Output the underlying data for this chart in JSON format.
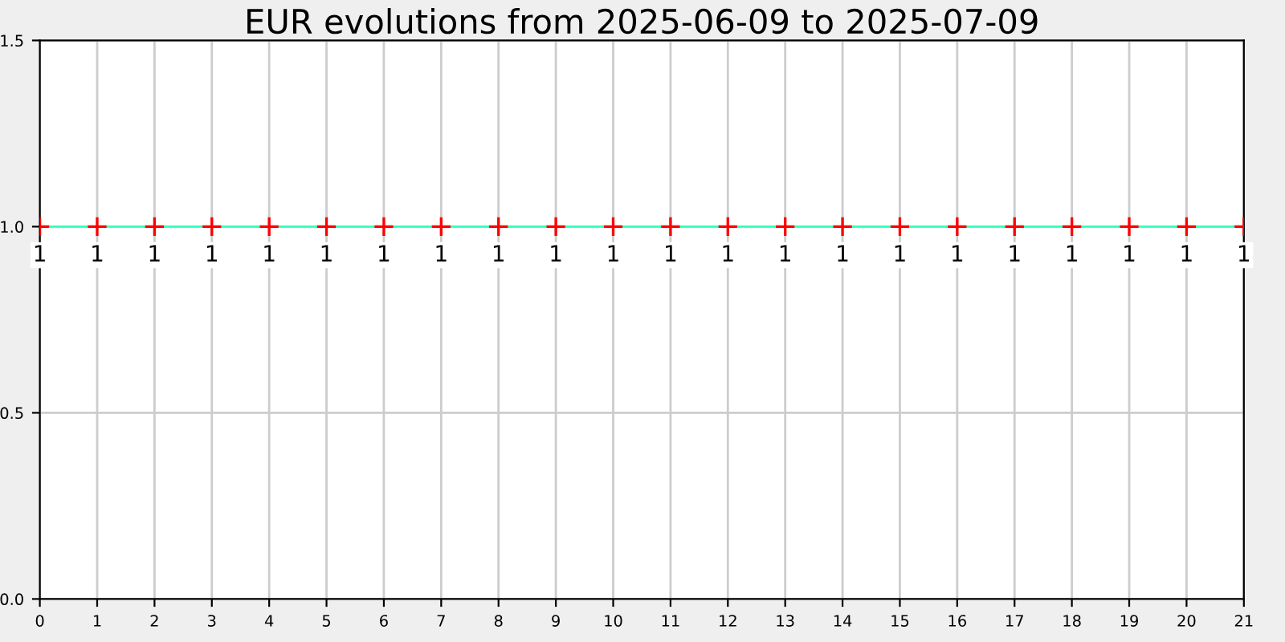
{
  "chart_data": {
    "type": "line",
    "title": "EUR evolutions from 2025-06-09 to 2025-07-09",
    "x": [
      0,
      1,
      2,
      3,
      4,
      5,
      6,
      7,
      8,
      9,
      10,
      11,
      12,
      13,
      14,
      15,
      16,
      17,
      18,
      19,
      20,
      21
    ],
    "series": [
      {
        "color": "#33ffbb",
        "marker": "none",
        "values": [
          1,
          1,
          1,
          1,
          1,
          1,
          1,
          1,
          1,
          1,
          1,
          1,
          1,
          1,
          1,
          1,
          1,
          1,
          1,
          1,
          1,
          1
        ]
      },
      {
        "type": "scatter",
        "color": "#ff0000",
        "marker": "cross",
        "values": [
          1,
          1,
          1,
          1,
          1,
          1,
          1,
          1,
          1,
          1,
          1,
          1,
          1,
          1,
          1,
          1,
          1,
          1,
          1,
          1,
          1,
          1
        ],
        "value_labels": [
          "1",
          "1",
          "1",
          "1",
          "1",
          "1",
          "1",
          "1",
          "1",
          "1",
          "1",
          "1",
          "1",
          "1",
          "1",
          "1",
          "1",
          "1",
          "1",
          "1",
          "1",
          "1"
        ]
      }
    ],
    "grid": true,
    "xlim": [
      0,
      21
    ],
    "xticks": [
      0,
      1,
      2,
      3,
      4,
      5,
      6,
      7,
      8,
      9,
      10,
      11,
      12,
      13,
      14,
      15,
      16,
      17,
      18,
      19,
      20,
      21
    ],
    "ylim": [
      0,
      1.5
    ],
    "yticks": [
      {
        "value": 0,
        "label": "0.0"
      },
      {
        "value": 0.5,
        "label": "0.5"
      },
      {
        "value": 1,
        "label": "1.0"
      },
      {
        "value": 1.5,
        "label": "1.5"
      }
    ]
  }
}
